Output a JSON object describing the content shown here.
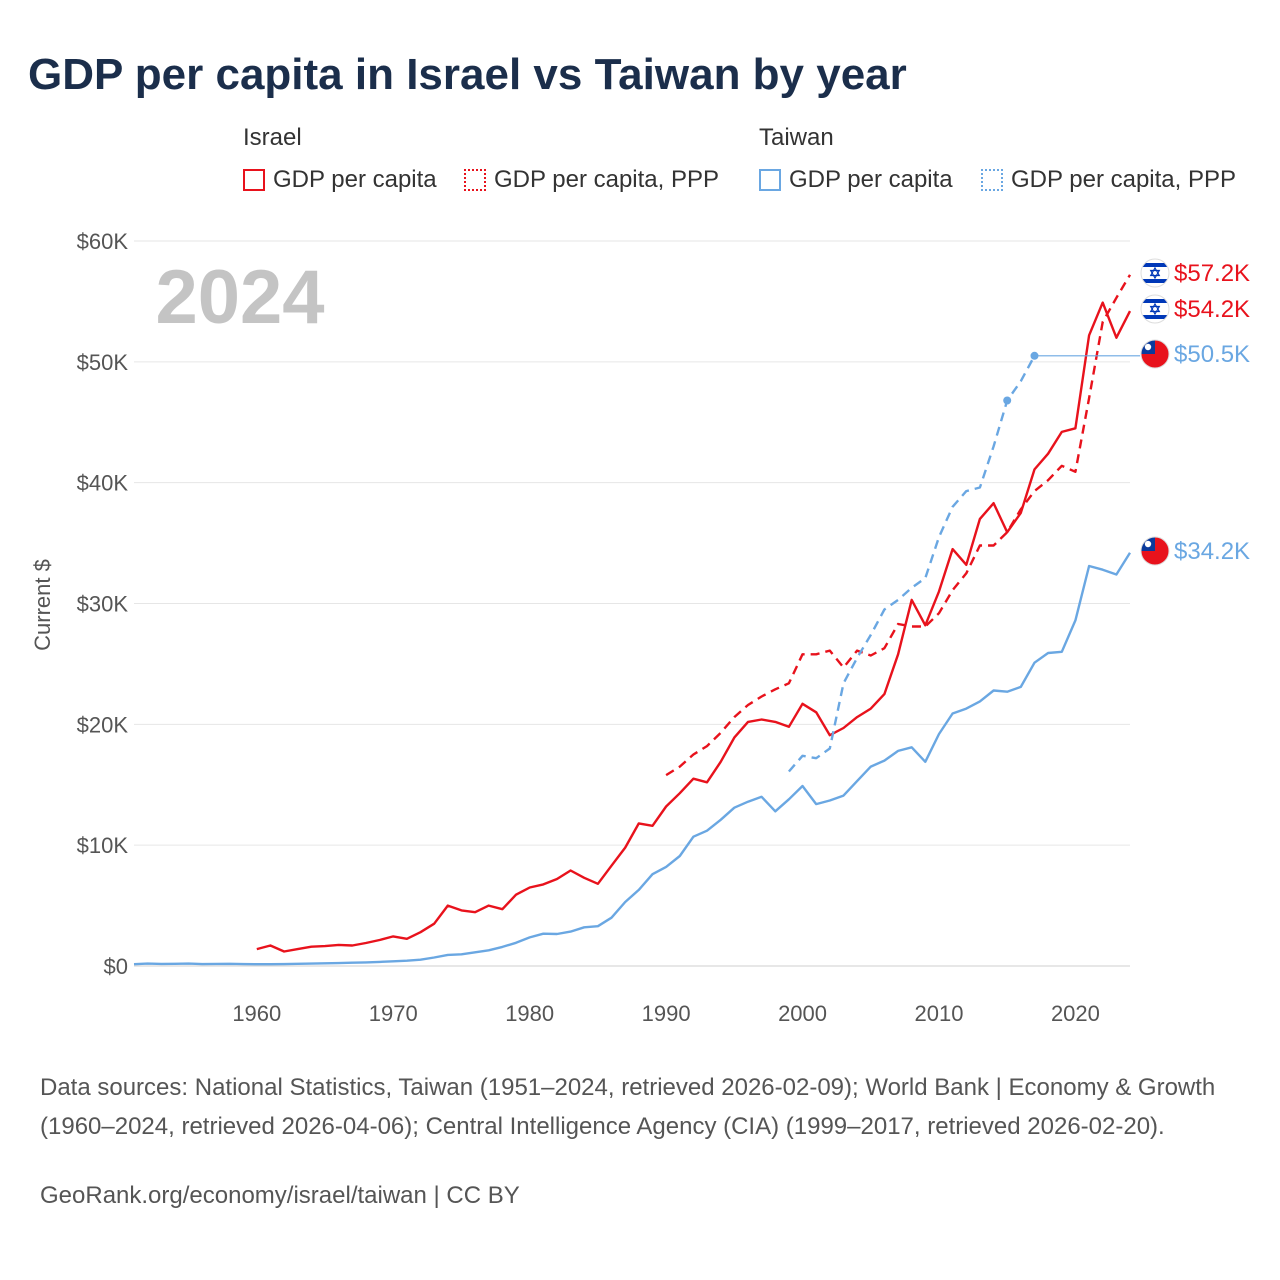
{
  "title": "GDP per capita in Israel vs Taiwan by year",
  "legend": {
    "israel": {
      "name": "Israel",
      "gdp": "GDP per capita",
      "ppp": "GDP per capita, PPP"
    },
    "taiwan": {
      "name": "Taiwan",
      "gdp": "GDP per capita",
      "ppp": "GDP per capita, PPP"
    }
  },
  "colors": {
    "israel": "#e8121c",
    "taiwan": "#6aa7e2",
    "grid": "#e6e6e6",
    "year": "#c4c4c4"
  },
  "year_watermark": "2024",
  "footer": {
    "sources": "Data sources: National Statistics, Taiwan (1951–2024, retrieved 2026-02-09); World Bank | Economy & Growth (1960–2024, retrieved 2026-04-06); Central Intelligence Agency (CIA) (1999–2017, retrieved 2026-02-20).",
    "credit": "GeoRank.org/economy/israel/taiwan | CC BY"
  },
  "chart_data": {
    "type": "line",
    "title": "GDP per capita in Israel vs Taiwan by year",
    "ylabel": "Current $",
    "xlabel": "",
    "xlim": [
      1951,
      2024
    ],
    "ylim": [
      0,
      60000
    ],
    "x_ticks": [
      1960,
      1970,
      1980,
      1990,
      2000,
      2010,
      2020
    ],
    "y_ticks": [
      {
        "value": 0,
        "label": "$0"
      },
      {
        "value": 10000,
        "label": "$10K"
      },
      {
        "value": 20000,
        "label": "$20K"
      },
      {
        "value": 30000,
        "label": "$30K"
      },
      {
        "value": 40000,
        "label": "$40K"
      },
      {
        "value": 50000,
        "label": "$50K"
      },
      {
        "value": 60000,
        "label": "$60K"
      }
    ],
    "end_labels": [
      {
        "series": "Israel GDP per capita, PPP",
        "value": 57200,
        "label": "$57.2K",
        "flag": "israel"
      },
      {
        "series": "Israel GDP per capita",
        "value": 54200,
        "label": "$54.2K",
        "flag": "israel"
      },
      {
        "series": "Taiwan GDP per capita, PPP",
        "value": 50500,
        "label": "$50.5K",
        "flag": "taiwan"
      },
      {
        "series": "Taiwan GDP per capita",
        "value": 34200,
        "label": "$34.2K",
        "flag": "taiwan"
      }
    ],
    "series": [
      {
        "name": "Israel GDP per capita",
        "country": "israel",
        "style": "solid",
        "points": [
          [
            1960,
            1400
          ],
          [
            1961,
            1700
          ],
          [
            1962,
            1200
          ],
          [
            1963,
            1400
          ],
          [
            1964,
            1600
          ],
          [
            1965,
            1650
          ],
          [
            1966,
            1750
          ],
          [
            1967,
            1700
          ],
          [
            1968,
            1900
          ],
          [
            1969,
            2150
          ],
          [
            1970,
            2450
          ],
          [
            1971,
            2250
          ],
          [
            1972,
            2800
          ],
          [
            1973,
            3500
          ],
          [
            1974,
            5000
          ],
          [
            1975,
            4600
          ],
          [
            1976,
            4450
          ],
          [
            1977,
            5000
          ],
          [
            1978,
            4700
          ],
          [
            1979,
            5900
          ],
          [
            1980,
            6500
          ],
          [
            1981,
            6750
          ],
          [
            1982,
            7200
          ],
          [
            1983,
            7900
          ],
          [
            1984,
            7300
          ],
          [
            1985,
            6800
          ],
          [
            1986,
            8300
          ],
          [
            1987,
            9800
          ],
          [
            1988,
            11800
          ],
          [
            1989,
            11600
          ],
          [
            1990,
            13200
          ],
          [
            1991,
            14300
          ],
          [
            1992,
            15500
          ],
          [
            1993,
            15200
          ],
          [
            1994,
            16900
          ],
          [
            1995,
            18900
          ],
          [
            1996,
            20200
          ],
          [
            1997,
            20400
          ],
          [
            1998,
            20200
          ],
          [
            1999,
            19800
          ],
          [
            2000,
            21700
          ],
          [
            2001,
            21000
          ],
          [
            2002,
            19100
          ],
          [
            2003,
            19700
          ],
          [
            2004,
            20600
          ],
          [
            2005,
            21300
          ],
          [
            2006,
            22500
          ],
          [
            2007,
            25800
          ],
          [
            2008,
            30300
          ],
          [
            2009,
            28200
          ],
          [
            2010,
            31000
          ],
          [
            2011,
            34500
          ],
          [
            2012,
            33200
          ],
          [
            2013,
            37000
          ],
          [
            2014,
            38300
          ],
          [
            2015,
            35900
          ],
          [
            2016,
            37500
          ],
          [
            2017,
            41100
          ],
          [
            2018,
            42400
          ],
          [
            2019,
            44200
          ],
          [
            2020,
            44500
          ],
          [
            2021,
            52200
          ],
          [
            2022,
            54900
          ],
          [
            2023,
            52000
          ],
          [
            2024,
            54200
          ]
        ]
      },
      {
        "name": "Israel GDP per capita, PPP",
        "country": "israel",
        "style": "dashed",
        "points": [
          [
            1990,
            15800
          ],
          [
            1991,
            16500
          ],
          [
            1992,
            17500
          ],
          [
            1993,
            18200
          ],
          [
            1994,
            19300
          ],
          [
            1995,
            20600
          ],
          [
            1996,
            21600
          ],
          [
            1997,
            22300
          ],
          [
            1998,
            22900
          ],
          [
            1999,
            23400
          ],
          [
            2000,
            25800
          ],
          [
            2001,
            25800
          ],
          [
            2002,
            26100
          ],
          [
            2003,
            24700
          ],
          [
            2004,
            26100
          ],
          [
            2005,
            25700
          ],
          [
            2006,
            26300
          ],
          [
            2007,
            28300
          ],
          [
            2008,
            28100
          ],
          [
            2009,
            28100
          ],
          [
            2010,
            29200
          ],
          [
            2011,
            31100
          ],
          [
            2012,
            32500
          ],
          [
            2013,
            34800
          ],
          [
            2014,
            34800
          ],
          [
            2015,
            35900
          ],
          [
            2016,
            37800
          ],
          [
            2017,
            39300
          ],
          [
            2018,
            40200
          ],
          [
            2019,
            41400
          ],
          [
            2020,
            40900
          ],
          [
            2021,
            47000
          ],
          [
            2022,
            53300
          ],
          [
            2023,
            55300
          ],
          [
            2024,
            57200
          ]
        ]
      },
      {
        "name": "Taiwan GDP per capita",
        "country": "taiwan",
        "style": "solid",
        "points": [
          [
            1951,
            150
          ],
          [
            1952,
            200
          ],
          [
            1953,
            170
          ],
          [
            1954,
            180
          ],
          [
            1955,
            200
          ],
          [
            1956,
            160
          ],
          [
            1957,
            170
          ],
          [
            1958,
            180
          ],
          [
            1959,
            160
          ],
          [
            1960,
            150
          ],
          [
            1961,
            150
          ],
          [
            1962,
            160
          ],
          [
            1963,
            180
          ],
          [
            1964,
            200
          ],
          [
            1965,
            220
          ],
          [
            1966,
            240
          ],
          [
            1967,
            270
          ],
          [
            1968,
            300
          ],
          [
            1969,
            340
          ],
          [
            1970,
            390
          ],
          [
            1971,
            440
          ],
          [
            1972,
            520
          ],
          [
            1973,
            700
          ],
          [
            1974,
            920
          ],
          [
            1975,
            970
          ],
          [
            1976,
            1130
          ],
          [
            1977,
            1300
          ],
          [
            1978,
            1580
          ],
          [
            1979,
            1920
          ],
          [
            1980,
            2370
          ],
          [
            1981,
            2670
          ],
          [
            1982,
            2650
          ],
          [
            1983,
            2850
          ],
          [
            1984,
            3200
          ],
          [
            1985,
            3290
          ],
          [
            1986,
            4000
          ],
          [
            1987,
            5300
          ],
          [
            1988,
            6300
          ],
          [
            1989,
            7600
          ],
          [
            1990,
            8200
          ],
          [
            1991,
            9100
          ],
          [
            1992,
            10700
          ],
          [
            1993,
            11200
          ],
          [
            1994,
            12100
          ],
          [
            1995,
            13100
          ],
          [
            1996,
            13600
          ],
          [
            1997,
            14000
          ],
          [
            1998,
            12800
          ],
          [
            1999,
            13800
          ],
          [
            2000,
            14900
          ],
          [
            2001,
            13400
          ],
          [
            2002,
            13700
          ],
          [
            2003,
            14100
          ],
          [
            2004,
            15300
          ],
          [
            2005,
            16500
          ],
          [
            2006,
            17000
          ],
          [
            2007,
            17800
          ],
          [
            2008,
            18100
          ],
          [
            2009,
            16900
          ],
          [
            2010,
            19200
          ],
          [
            2011,
            20900
          ],
          [
            2012,
            21300
          ],
          [
            2013,
            21900
          ],
          [
            2014,
            22800
          ],
          [
            2015,
            22700
          ],
          [
            2016,
            23100
          ],
          [
            2017,
            25100
          ],
          [
            2018,
            25900
          ],
          [
            2019,
            26000
          ],
          [
            2020,
            28600
          ],
          [
            2021,
            33100
          ],
          [
            2022,
            32800
          ],
          [
            2023,
            32400
          ],
          [
            2024,
            34200
          ]
        ]
      },
      {
        "name": "Taiwan GDP per capita, PPP",
        "country": "taiwan",
        "style": "dashed",
        "points": [
          [
            1999,
            16100
          ],
          [
            2000,
            17400
          ],
          [
            2001,
            17200
          ],
          [
            2002,
            18000
          ],
          [
            2003,
            23400
          ],
          [
            2004,
            25500
          ],
          [
            2005,
            27400
          ],
          [
            2006,
            29500
          ],
          [
            2007,
            30300
          ],
          [
            2008,
            31300
          ],
          [
            2009,
            32100
          ],
          [
            2010,
            35500
          ],
          [
            2011,
            38000
          ],
          [
            2012,
            39300
          ],
          [
            2013,
            39600
          ],
          [
            2014,
            43000
          ],
          [
            2015,
            46800
          ],
          [
            2016,
            48400
          ],
          [
            2017,
            50500
          ]
        ]
      }
    ]
  }
}
